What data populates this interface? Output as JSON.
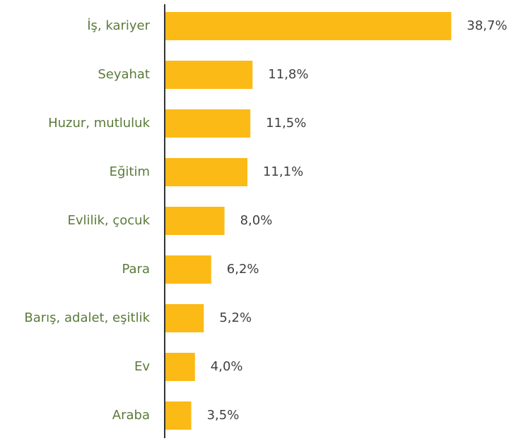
{
  "chart_data": {
    "type": "bar",
    "orientation": "horizontal",
    "categories": [
      "İş, kariyer",
      "Seyahat",
      "Huzur, mutluluk",
      "Eğitim",
      "Evlilik, çocuk",
      "Para",
      "Barış, adalet, eşitlik",
      "Ev",
      "Araba"
    ],
    "values": [
      38.7,
      11.8,
      11.5,
      11.1,
      8.0,
      6.2,
      5.2,
      4.0,
      3.5
    ],
    "value_labels": [
      "38,7%",
      "11,8%",
      "11,5%",
      "11,1%",
      "8,0%",
      "6,2%",
      "5,2%",
      "4,0%",
      "3,5%"
    ],
    "color": "#fbba16"
  }
}
